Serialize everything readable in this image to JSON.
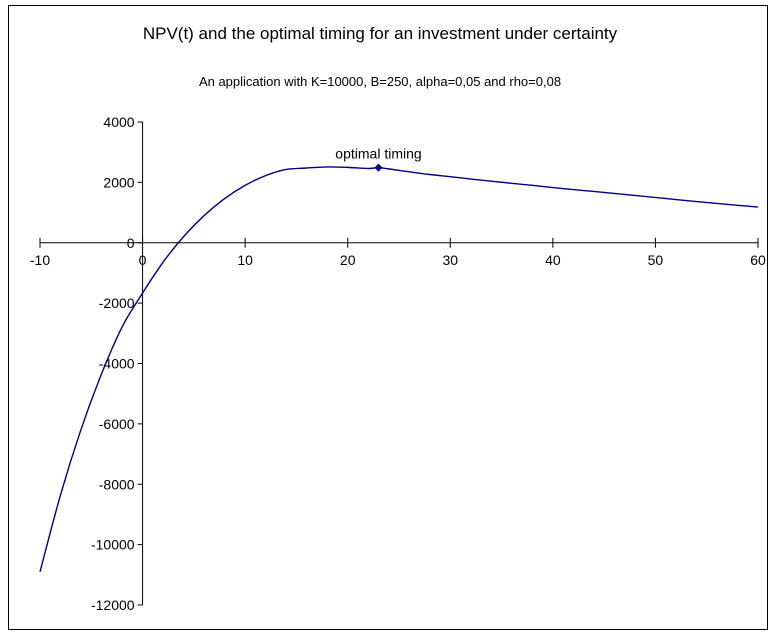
{
  "chart_data": {
    "type": "line",
    "title": "NPV(t) and the optimal timing for an investment under certainty",
    "subtitle": "An application with K=10000, B=250, alpha=0,05 and rho=0,08",
    "xlabel": "",
    "ylabel": "",
    "xlim": [
      -10,
      60
    ],
    "ylim": [
      -12000,
      4000
    ],
    "x_ticks": [
      -10,
      0,
      10,
      20,
      30,
      40,
      50,
      60
    ],
    "y_ticks": [
      4000,
      2000,
      0,
      -2000,
      -4000,
      -6000,
      -8000,
      -10000,
      -12000
    ],
    "grid": false,
    "legend": "none",
    "line_color": "#000080",
    "series": [
      {
        "x": [
          -10,
          -8,
          -6,
          -4,
          -2,
          0,
          2,
          4,
          6,
          8,
          10,
          12,
          14,
          16,
          18,
          20,
          22,
          23,
          24,
          26,
          28,
          30,
          32,
          34,
          36,
          38,
          40,
          42,
          44,
          46,
          48,
          50,
          52,
          54,
          56,
          58,
          60
        ],
        "y": [
          -10901,
          -8354,
          -6184,
          -4345,
          -2793,
          -1667,
          -643,
          203,
          901,
          1464,
          1902,
          2224,
          2428,
          2476,
          2511,
          2497,
          2460,
          2488,
          2447,
          2350,
          2261,
          2188,
          2110,
          2039,
          1970,
          1901,
          1830,
          1762,
          1698,
          1632,
          1567,
          1500,
          1432,
          1366,
          1302,
          1240,
          1181
        ]
      }
    ],
    "annotations": [
      {
        "text": "optimal timing",
        "x": 23,
        "y": 2488
      }
    ]
  }
}
